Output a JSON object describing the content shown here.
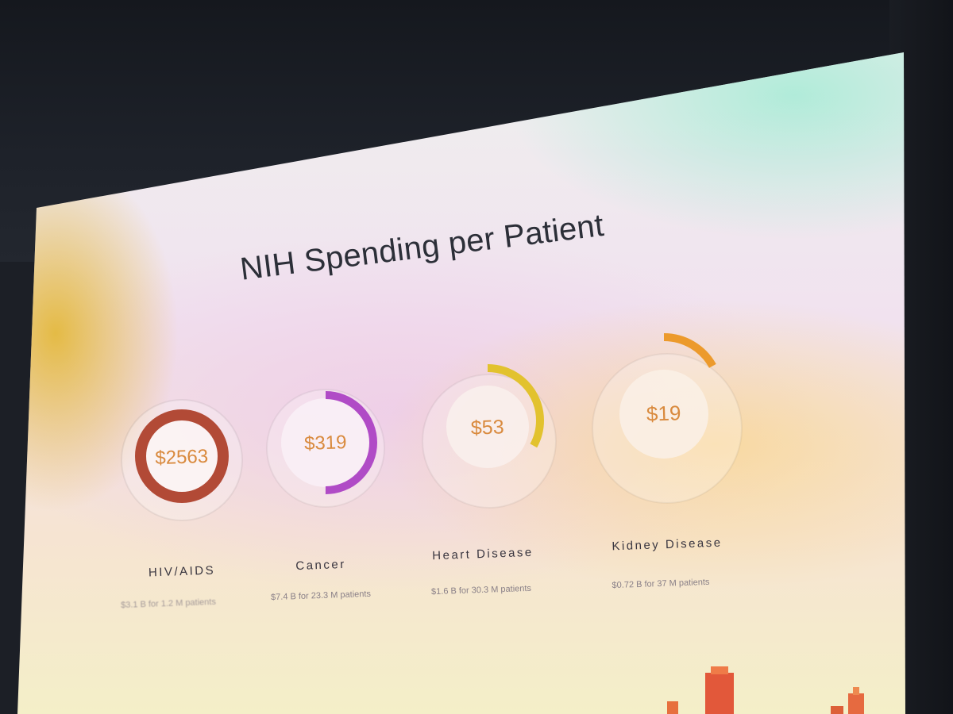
{
  "slide": {
    "title": "NIH Spending per Patient",
    "items": [
      {
        "label": "HIV/AIDS",
        "value": "$2563",
        "detail": "$3.1 B for 1.2 M patients",
        "color": "#b24a36",
        "fill": 1.0
      },
      {
        "label": "Cancer",
        "value": "$319",
        "detail": "$7.4 B for 23.3 M patients",
        "color": "#b04bc6",
        "fill": 0.5
      },
      {
        "label": "Heart Disease",
        "value": "$53",
        "detail": "$1.6 B for 30.3 M patients",
        "color": "#e2c22e",
        "fill": 0.33
      },
      {
        "label": "Kidney Disease",
        "value": "$19",
        "detail": "$0.72 B for 37 M patients",
        "color": "#ec9a2c",
        "fill": 0.17
      }
    ],
    "value_color": "#d98a3e"
  }
}
